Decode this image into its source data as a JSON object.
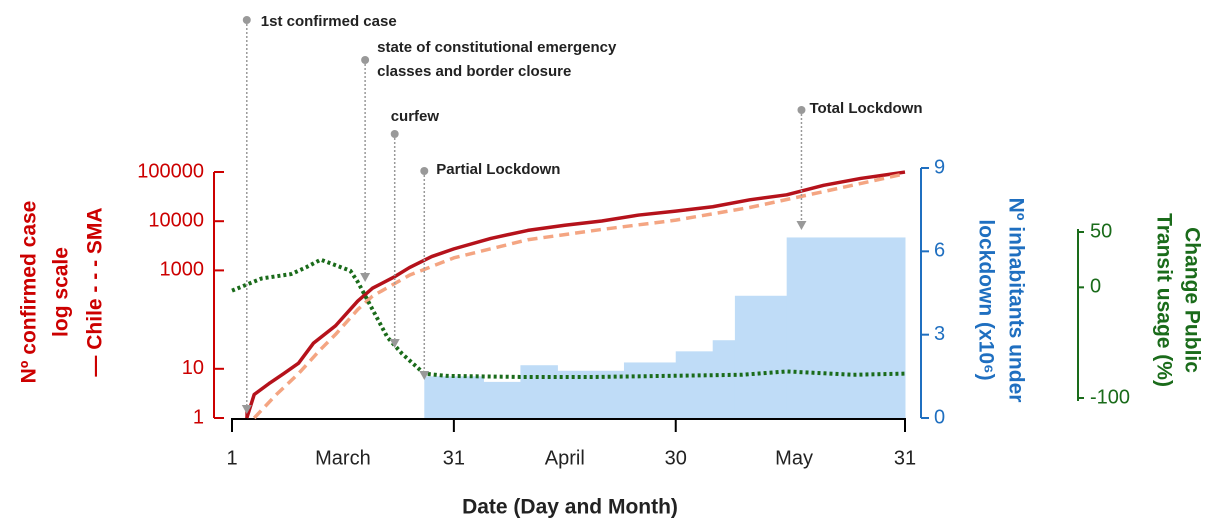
{
  "chart_data": {
    "type": "line",
    "xlabel": "Date (Day and Month)",
    "ylabel": [
      "Nº confirmed case",
      "log scale",
      "— Chile - - - SMA"
    ],
    "y2label": [
      "Nº inhabitants under",
      "lockdown (x10⁶)"
    ],
    "y3label": [
      "Change Public",
      "Transit usage (%)"
    ],
    "xlim": [
      1,
      92
    ],
    "xticks": [
      1,
      31,
      {
        "value": 61,
        "label": "30"
      },
      {
        "value": 92,
        "label": "31"
      }
    ],
    "xlabels": [
      {
        "value": 16,
        "label": "March"
      },
      {
        "value": 46,
        "label": "April"
      },
      {
        "value": 77,
        "label": "May"
      }
    ],
    "ylim": [
      1,
      100000
    ],
    "ylog": true,
    "ycolor": "#cc0000",
    "yticks": [
      1,
      10,
      1000,
      10000,
      100000
    ],
    "y2lim": [
      0,
      9
    ],
    "y2ticks": [
      0,
      3,
      6,
      9
    ],
    "y2color": "#1f6fc0",
    "y3lim": [
      -100,
      50
    ],
    "y3ticks": [
      50,
      0,
      -100
    ],
    "y3color": "#1a6b1a",
    "series": [
      {
        "type": "line",
        "style": "solid",
        "color": "#b5121b",
        "x": [
          3,
          4,
          6,
          8,
          10,
          12,
          15,
          18,
          20,
          23,
          25,
          28,
          31,
          36,
          41,
          46,
          51,
          56,
          61,
          66,
          71,
          76,
          81,
          86,
          92
        ],
        "values": [
          1,
          3,
          5,
          8,
          13,
          33,
          75,
          238,
          434,
          746,
          1142,
          1909,
          2738,
          4471,
          6501,
          8273,
          10088,
          13331,
          16023,
          19663,
          27219,
          34381,
          53617,
          73997,
          99688
        ]
      },
      {
        "type": "line",
        "style": "dashed",
        "color": "#f4a582",
        "x": [
          4,
          7,
          10,
          13,
          15,
          18,
          20,
          25,
          31,
          41,
          51,
          61,
          71,
          81,
          92
        ],
        "values": [
          1,
          3,
          8,
          25,
          50,
          160,
          300,
          800,
          1800,
          4200,
          6800,
          10500,
          19000,
          40000,
          92000
        ]
      },
      {
        "type": "bar",
        "axis": "y2",
        "color": "#bfdcf7",
        "bins": [
          27,
          35,
          40,
          45,
          54,
          61,
          66,
          69,
          76,
          92
        ],
        "values": [
          1.5,
          1.3,
          1.9,
          1.7,
          2.0,
          2.4,
          2.8,
          4.4,
          6.5
        ]
      },
      {
        "type": "line",
        "style": "dotted",
        "axis": "y3",
        "color": "#1a6b1a",
        "x": [
          1,
          5,
          9,
          11,
          13,
          15,
          17,
          18,
          20,
          22,
          24,
          27,
          30,
          40,
          50,
          60,
          70,
          76,
          85,
          92
        ],
        "values": [
          -3,
          8,
          12,
          18,
          25,
          20,
          15,
          5,
          -20,
          -45,
          -60,
          -78,
          -80,
          -81,
          -81,
          -80,
          -79,
          -76,
          -79,
          -78
        ]
      }
    ],
    "annotations": [
      {
        "text": [
          "1st confirmed case"
        ],
        "x": 3
      },
      {
        "text": [
          "state of constitutional emergency",
          "classes and border closure"
        ],
        "x": 19
      },
      {
        "text": [
          "curfew"
        ],
        "x": 23
      },
      {
        "text": [
          "Partial Lockdown"
        ],
        "x": 27
      },
      {
        "text": [
          "Total Lockdown"
        ],
        "x": 78
      }
    ]
  }
}
